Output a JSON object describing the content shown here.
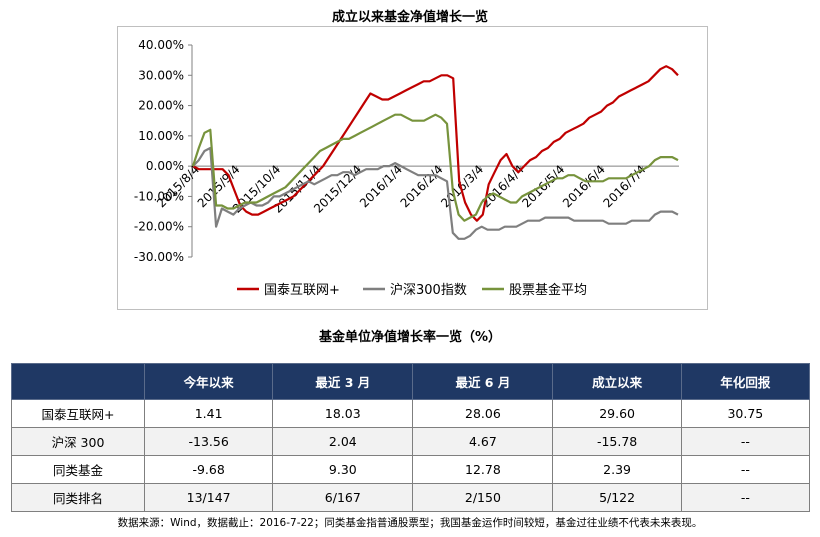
{
  "chart_data": {
    "type": "line",
    "title": "成立以来基金净值增长一览",
    "y_ticks": [
      "40.00%",
      "30.00%",
      "20.00%",
      "10.00%",
      "0.00%",
      "-10.00%",
      "-20.00%",
      "-30.00%"
    ],
    "ylim": [
      -30,
      40
    ],
    "x_ticks": [
      "2015/8/4",
      "2015/9/4",
      "2015/10/4",
      "2015/11/4",
      "2015/12/4",
      "2016/1/4",
      "2016/2/4",
      "2016/3/4",
      "2016/4/4",
      "2016/5/4",
      "2016/6/4",
      "2016/7/4"
    ],
    "legend_position": "bottom",
    "series": [
      {
        "name": "国泰互联网+",
        "color": "#c00000",
        "values": [
          0,
          -1,
          -1,
          -1,
          -1,
          -1,
          -3,
          -8,
          -13,
          -15,
          -16,
          -16,
          -15,
          -14,
          -13,
          -12,
          -11,
          -10,
          -8,
          -6,
          -4,
          -2,
          0,
          3,
          6,
          9,
          12,
          15,
          18,
          21,
          24,
          23,
          22,
          22,
          23,
          24,
          25,
          26,
          27,
          28,
          28,
          29,
          30,
          30,
          29,
          -5,
          -12,
          -16,
          -18,
          -16,
          -6,
          -2,
          2,
          4,
          0,
          -2,
          0,
          2,
          3,
          5,
          6,
          8,
          9,
          11,
          12,
          13,
          14,
          16,
          17,
          18,
          20,
          21,
          23,
          24,
          25,
          26,
          27,
          28,
          30,
          32,
          33,
          32,
          30
        ]
      },
      {
        "name": "沪深300指数",
        "color": "#7f7f7f",
        "values": [
          0,
          2,
          5,
          6,
          -20,
          -14,
          -15,
          -16,
          -14,
          -13,
          -12,
          -13,
          -13,
          -12,
          -10,
          -10,
          -9,
          -8,
          -7,
          -6,
          -5,
          -6,
          -5,
          -4,
          -3,
          -3,
          -2,
          -2,
          -3,
          -2,
          -1,
          -1,
          -1,
          0,
          0,
          1,
          0,
          -1,
          -2,
          -3,
          -3,
          -3,
          -3,
          -4,
          -5,
          -22,
          -24,
          -24,
          -23,
          -21,
          -20,
          -21,
          -21,
          -21,
          -20,
          -20,
          -20,
          -19,
          -18,
          -18,
          -18,
          -17,
          -17,
          -17,
          -17,
          -17,
          -18,
          -18,
          -18,
          -18,
          -18,
          -18,
          -19,
          -19,
          -19,
          -19,
          -18,
          -18,
          -18,
          -18,
          -16,
          -15,
          -15,
          -15,
          -16
        ]
      },
      {
        "name": "股票基金平均",
        "color": "#77933c",
        "values": [
          0,
          6,
          11,
          12,
          -13,
          -13,
          -14,
          -14,
          -13,
          -12,
          -12,
          -12,
          -11,
          -10,
          -9,
          -8,
          -7,
          -5,
          -3,
          -1,
          1,
          3,
          5,
          6,
          7,
          8,
          9,
          9,
          10,
          11,
          12,
          13,
          14,
          15,
          16,
          17,
          17,
          16,
          15,
          15,
          15,
          16,
          17,
          16,
          14,
          -8,
          -16,
          -18,
          -17,
          -16,
          -12,
          -10,
          -9,
          -10,
          -11,
          -12,
          -12,
          -10,
          -9,
          -8,
          -7,
          -6,
          -5,
          -4,
          -4,
          -3,
          -3,
          -4,
          -5,
          -5,
          -5,
          -5,
          -4,
          -4,
          -4,
          -4,
          -3,
          -2,
          -1,
          0,
          2,
          3,
          3,
          3,
          2
        ]
      }
    ]
  },
  "table": {
    "title": "基金单位净值增长率一览（%）",
    "headers": [
      "",
      "今年以来",
      "最近 3 月",
      "最近 6 月",
      "成立以来",
      "年化回报"
    ],
    "rows": [
      [
        "国泰互联网+",
        "1.41",
        "18.03",
        "28.06",
        "29.60",
        "30.75"
      ],
      [
        "沪深 300",
        "-13.56",
        "2.04",
        "4.67",
        "-15.78",
        "--"
      ],
      [
        "同类基金",
        "-9.68",
        "9.30",
        "12.78",
        "2.39",
        "--"
      ],
      [
        "同类排名",
        "13/147",
        "6/167",
        "2/150",
        "5/122",
        "--"
      ]
    ]
  },
  "footnote": "数据来源：Wind，数据截止：2016-7-22；同类基金指普通股票型；我国基金运作时间较短，基金过往业绩不代表未来表现。"
}
